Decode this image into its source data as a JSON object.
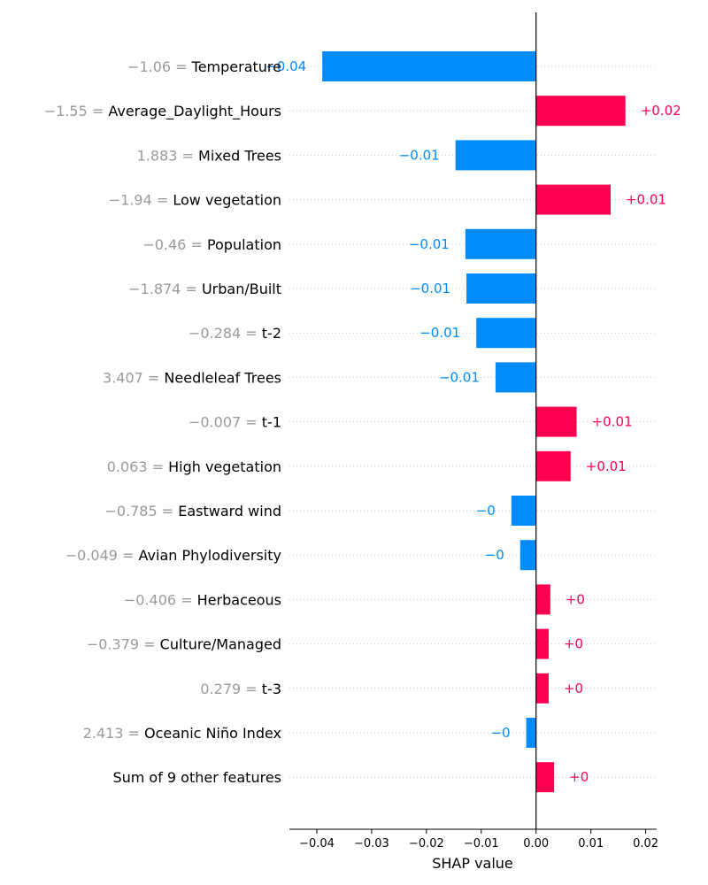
{
  "chart_data": {
    "type": "bar",
    "orientation": "horizontal",
    "xlabel": "SHAP value",
    "xlim": [
      -0.045,
      0.022
    ],
    "xticks": [
      -0.04,
      -0.03,
      -0.02,
      -0.01,
      0.0,
      0.01,
      0.02
    ],
    "xtick_labels": [
      "−0.04",
      "−0.03",
      "−0.02",
      "−0.01",
      "0.00",
      "0.01",
      "0.02"
    ],
    "colors": {
      "positive": "#ff0051",
      "negative": "#008bfb",
      "feature_value": "#9a9a9a"
    },
    "rows": [
      {
        "feature_value": "−1.06 =",
        "feature": "Temperature",
        "value": -0.039,
        "label": "−0.04"
      },
      {
        "feature_value": "−1.55 =",
        "feature": "Average_Daylight_Hours",
        "value": 0.0163,
        "label": "+0.02"
      },
      {
        "feature_value": "1.883 =",
        "feature": "Mixed Trees",
        "value": -0.0147,
        "label": "−0.01"
      },
      {
        "feature_value": "−1.94 =",
        "feature": "Low vegetation",
        "value": 0.0136,
        "label": "+0.01"
      },
      {
        "feature_value": "−0.46 =",
        "feature": "Population",
        "value": -0.0129,
        "label": "−0.01"
      },
      {
        "feature_value": "−1.874 =",
        "feature": "Urban/Built",
        "value": -0.0127,
        "label": "−0.01"
      },
      {
        "feature_value": "−0.284 =",
        "feature": "t-2",
        "value": -0.0109,
        "label": "−0.01"
      },
      {
        "feature_value": "3.407 =",
        "feature": "Needleleaf Trees",
        "value": -0.0074,
        "label": "−0.01"
      },
      {
        "feature_value": "−0.007 =",
        "feature": "t-1",
        "value": 0.0074,
        "label": "+0.01"
      },
      {
        "feature_value": "0.063 =",
        "feature": "High vegetation",
        "value": 0.0063,
        "label": "+0.01"
      },
      {
        "feature_value": "−0.785 =",
        "feature": "Eastward wind",
        "value": -0.0045,
        "label": "−0"
      },
      {
        "feature_value": "−0.049 =",
        "feature": "Avian Phylodiversity",
        "value": -0.0029,
        "label": "−0"
      },
      {
        "feature_value": "−0.406 =",
        "feature": "Herbaceous",
        "value": 0.0026,
        "label": "+0"
      },
      {
        "feature_value": "−0.379 =",
        "feature": "Culture/Managed",
        "value": 0.0023,
        "label": "+0"
      },
      {
        "feature_value": "0.279 =",
        "feature": "t-3",
        "value": 0.0023,
        "label": "+0"
      },
      {
        "feature_value": "2.413 =",
        "feature": "Oceanic Niño Index",
        "value": -0.0018,
        "label": "−0"
      },
      {
        "feature_value": "",
        "feature": "Sum of 9 other features",
        "value": 0.0033,
        "label": "+0"
      }
    ]
  }
}
